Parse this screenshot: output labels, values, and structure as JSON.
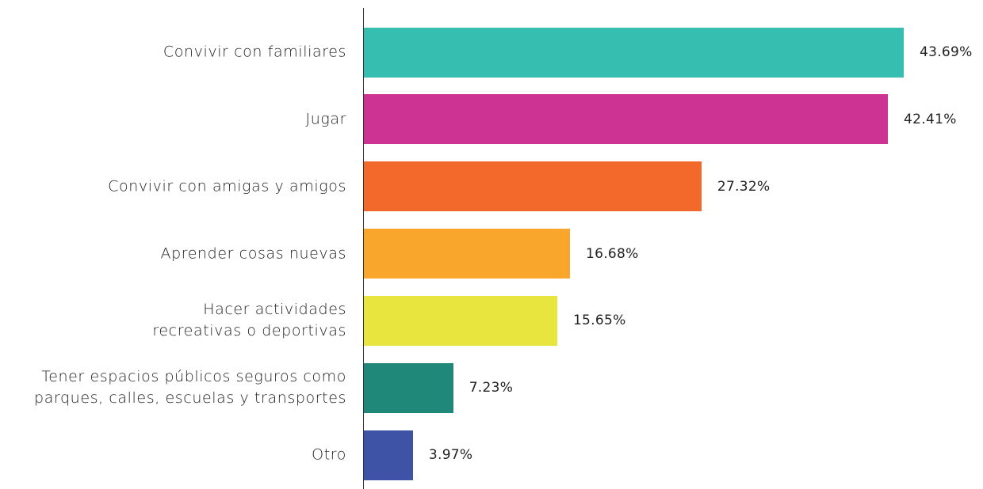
{
  "chart_data": {
    "type": "bar",
    "orientation": "horizontal",
    "categories": [
      "Convivir con familiares",
      "Jugar",
      "Convivir con amigas y amigos",
      "Aprender cosas nuevas",
      "Hacer actividades\nrecreativas o deportivas",
      "Tener espacios públicos seguros como\nparques, calles, escuelas y transportes",
      "Otro"
    ],
    "values": [
      43.69,
      42.41,
      27.32,
      16.68,
      15.65,
      7.23,
      3.97
    ],
    "value_labels": [
      "43.69%",
      "42.41%",
      "27.32%",
      "16.68%",
      "15.65%",
      "7.23%",
      "3.97%"
    ],
    "colors": [
      "#36bfb0",
      "#cc3393",
      "#f2692b",
      "#f9a72c",
      "#e8e63e",
      "#208878",
      "#3e52a6"
    ]
  }
}
